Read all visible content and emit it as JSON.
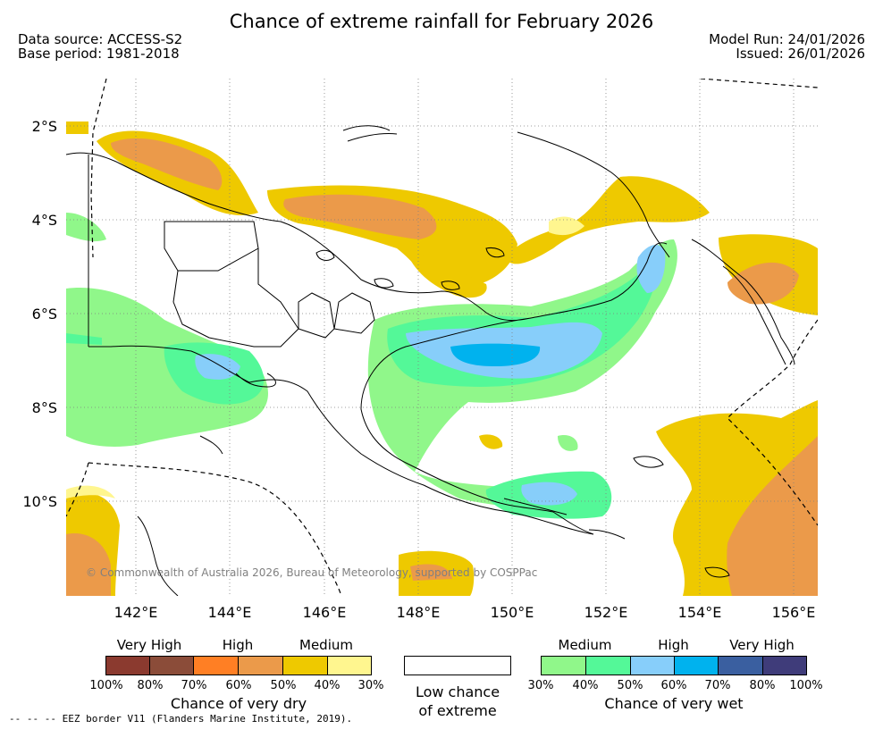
{
  "title": "Chance of extreme rainfall for February 2026",
  "meta": {
    "data_source": "Data source: ACCESS-S2",
    "base_period": "Base period: 1981-2018",
    "model_run": "Model Run: 24/01/2026",
    "issued": "Issued: 26/01/2026"
  },
  "map": {
    "lat_labels": [
      "2°S",
      "4°S",
      "6°S",
      "8°S",
      "10°S"
    ],
    "lon_labels": [
      "142°E",
      "144°E",
      "146°E",
      "148°E",
      "150°E",
      "152°E",
      "154°E",
      "156°E"
    ],
    "lon_range": [
      140.5,
      156.5
    ],
    "lat_range": [
      -12.0,
      -1.0
    ],
    "copyright": "© Commonwealth of Australia 2026, Bureau of Meteorology, supported by COSPPac",
    "colors": {
      "dry_30_40": "#fff68f",
      "dry_40_50": "#eec900",
      "dry_50_60": "#eb9a4a",
      "dry_60_70": "#ff7f24",
      "wet_30_40": "#90f78a",
      "wet_40_50": "#54f898",
      "wet_50_60": "#87cefa",
      "wet_60_70": "#00b2ee",
      "grid": "#808080",
      "coast": "#000000"
    }
  },
  "legend": {
    "dry": {
      "heads": [
        "Very High",
        "High",
        "Medium"
      ],
      "ticks": [
        "100%",
        "80%",
        "70%",
        "60%",
        "50%",
        "40%",
        "30%"
      ],
      "colors": [
        "#8b3a2f",
        "#8b4c39",
        "#ff7f24",
        "#eb9a4a",
        "#eec900",
        "#fff68f"
      ],
      "title": "Chance of very dry"
    },
    "low": {
      "line1": "Low chance",
      "line2": "of extreme"
    },
    "wet": {
      "heads": [
        "Medium",
        "High",
        "Very High"
      ],
      "ticks": [
        "30%",
        "40%",
        "50%",
        "60%",
        "70%",
        "80%",
        "100%"
      ],
      "colors": [
        "#90f78a",
        "#54f898",
        "#87cefa",
        "#00b2ee",
        "#3a5fa0",
        "#3f3c7a"
      ],
      "title": "Chance of very wet"
    }
  },
  "eez_note": "-- -- -- EEZ border V11 (Flanders Marine Institute, 2019)."
}
